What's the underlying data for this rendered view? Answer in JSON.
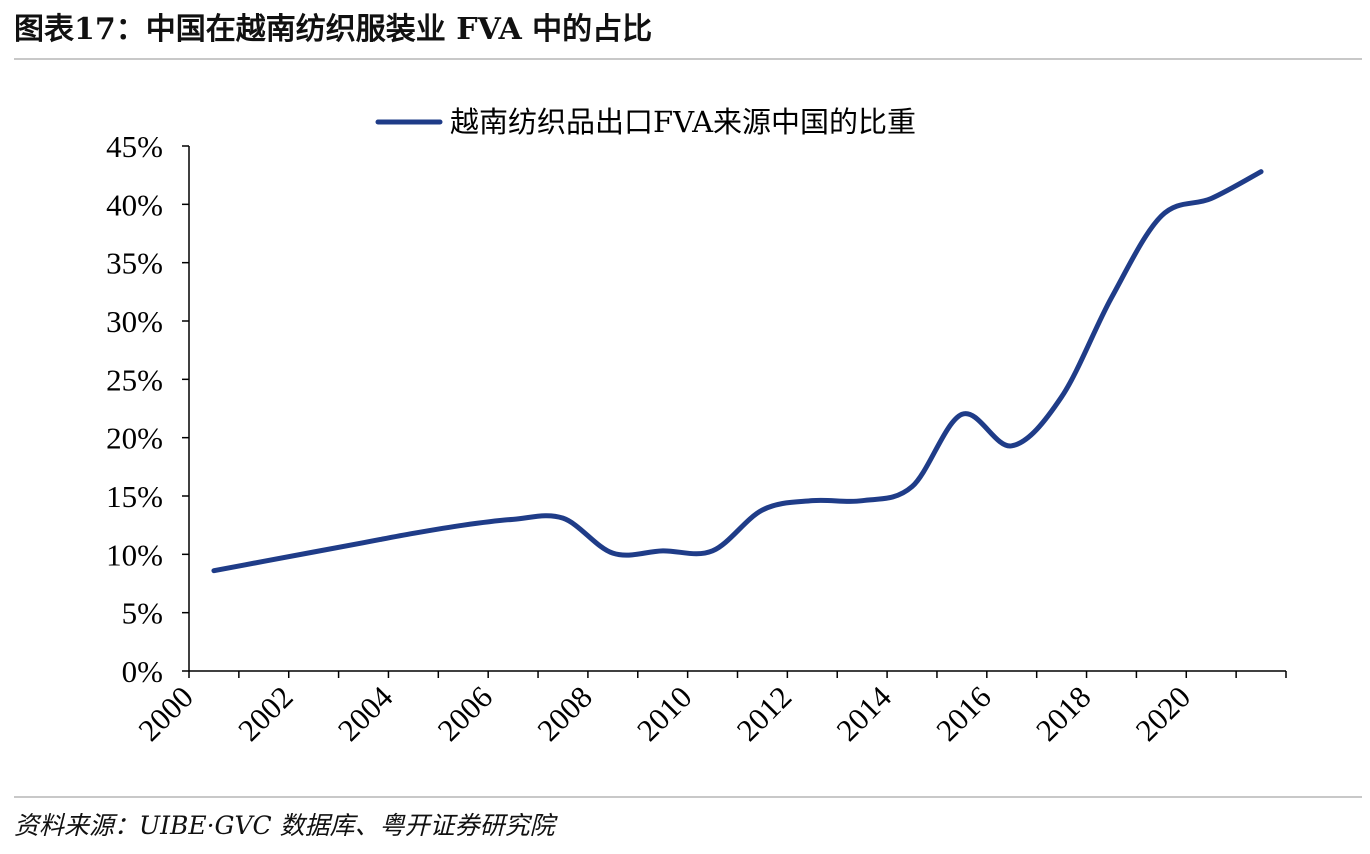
{
  "header": {
    "title": "图表17：中国在越南纺织服装业 FVA 中的占比"
  },
  "footer": {
    "source": "资料来源：UIBE·GVC 数据库、粤开证券研究院"
  },
  "colors": {
    "series": "#1f3c88",
    "axis": "#000000",
    "rule": "#c8c8c8"
  },
  "chart_data": {
    "type": "line",
    "title": "",
    "xlabel": "",
    "ylabel": "",
    "legend_position": "top-center",
    "grid": false,
    "xlim": [
      2000,
      2022
    ],
    "ylim": [
      0,
      45
    ],
    "x_ticks": [
      2000,
      2002,
      2004,
      2006,
      2008,
      2010,
      2012,
      2014,
      2016,
      2018,
      2020
    ],
    "x_tick_labels": [
      "2000",
      "2002",
      "2004",
      "2006",
      "2008",
      "2010",
      "2012",
      "2014",
      "2016",
      "2018",
      "2020"
    ],
    "y_ticks": [
      0,
      5,
      10,
      15,
      20,
      25,
      30,
      35,
      40,
      45
    ],
    "y_tick_labels": [
      "0%",
      "5%",
      "10%",
      "15%",
      "20%",
      "25%",
      "30%",
      "35%",
      "40%",
      "45%"
    ],
    "series": [
      {
        "name": "越南纺织品出口FVA来源中国的比重",
        "x": [
          2000.5,
          2001.5,
          2002.5,
          2003.5,
          2004.5,
          2005.5,
          2006.5,
          2007.5,
          2008.5,
          2009.5,
          2010.5,
          2011.5,
          2012.5,
          2013.5,
          2014.5,
          2015.5,
          2016.5,
          2017.5,
          2018.5,
          2019.5,
          2020.5,
          2021.5
        ],
        "values": [
          8.6,
          9.4,
          10.2,
          11.0,
          11.8,
          12.5,
          13.0,
          13.1,
          10.1,
          10.3,
          10.3,
          13.8,
          14.6,
          14.6,
          15.8,
          22.0,
          19.3,
          23.5,
          32.0,
          39.0,
          40.5,
          42.8
        ]
      }
    ]
  }
}
